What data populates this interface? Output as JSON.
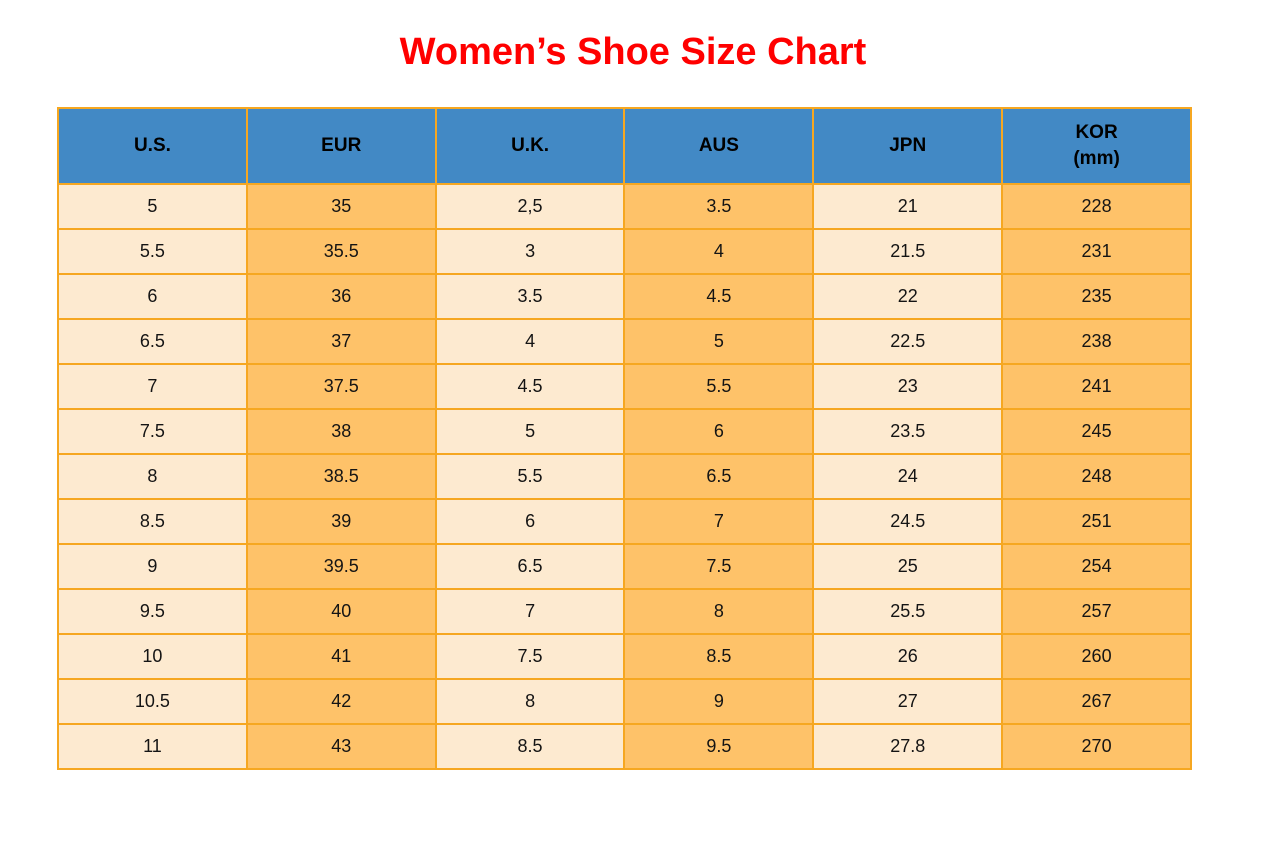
{
  "page": {
    "title": "Women’s Shoe Size Chart",
    "title_color": "#ff0000",
    "background": "#ffffff"
  },
  "table": {
    "columns": [
      {
        "key": "us",
        "label": "U.S.",
        "sublabel": ""
      },
      {
        "key": "eur",
        "label": "EUR",
        "sublabel": ""
      },
      {
        "key": "uk",
        "label": "U.K.",
        "sublabel": ""
      },
      {
        "key": "aus",
        "label": "AUS",
        "sublabel": ""
      },
      {
        "key": "jpn",
        "label": "JPN",
        "sublabel": ""
      },
      {
        "key": "kor",
        "label": "KOR",
        "sublabel": "(mm)"
      }
    ],
    "rows": [
      [
        "5",
        "35",
        "2,5",
        "3.5",
        "21",
        "228"
      ],
      [
        "5.5",
        "35.5",
        "3",
        "4",
        "21.5",
        "231"
      ],
      [
        "6",
        "36",
        "3.5",
        "4.5",
        "22",
        "235"
      ],
      [
        "6.5",
        "37",
        "4",
        "5",
        "22.5",
        "238"
      ],
      [
        "7",
        "37.5",
        "4.5",
        "5.5",
        "23",
        "241"
      ],
      [
        "7.5",
        "38",
        "5",
        "6",
        "23.5",
        "245"
      ],
      [
        "8",
        "38.5",
        "5.5",
        "6.5",
        "24",
        "248"
      ],
      [
        "8.5",
        "39",
        "6",
        "7",
        "24.5",
        "251"
      ],
      [
        "9",
        "39.5",
        "6.5",
        "7.5",
        "25",
        "254"
      ],
      [
        "9.5",
        "40",
        "7",
        "8",
        "25.5",
        "257"
      ],
      [
        "10",
        "41",
        "7.5",
        "8.5",
        "26",
        "260"
      ],
      [
        "10.5",
        "42",
        "8",
        "9",
        "27",
        "267"
      ],
      [
        "11",
        "43",
        "8.5",
        "9.5",
        "27.8",
        "270"
      ]
    ],
    "colors": {
      "header_bg": "#4289c5",
      "header_text": "#000000",
      "border": "#f6a721",
      "col_light": "#fdead0",
      "col_orange": "#fec269",
      "cell_text": "#141414"
    }
  },
  "chart_data": {
    "type": "table",
    "title": "Women’s Shoe Size Chart",
    "columns": [
      "U.S.",
      "EUR",
      "U.K.",
      "AUS",
      "JPN",
      "KOR (mm)"
    ],
    "rows": [
      [
        "5",
        "35",
        "2,5",
        "3.5",
        "21",
        "228"
      ],
      [
        "5.5",
        "35.5",
        "3",
        "4",
        "21.5",
        "231"
      ],
      [
        "6",
        "36",
        "3.5",
        "4.5",
        "22",
        "235"
      ],
      [
        "6.5",
        "37",
        "4",
        "5",
        "22.5",
        "238"
      ],
      [
        "7",
        "37.5",
        "4.5",
        "5.5",
        "23",
        "241"
      ],
      [
        "7.5",
        "38",
        "5",
        "6",
        "23.5",
        "245"
      ],
      [
        "8",
        "38.5",
        "5.5",
        "6.5",
        "24",
        "248"
      ],
      [
        "8.5",
        "39",
        "6",
        "7",
        "24.5",
        "251"
      ],
      [
        "9",
        "39.5",
        "6.5",
        "7.5",
        "25",
        "254"
      ],
      [
        "9.5",
        "40",
        "7",
        "8",
        "25.5",
        "257"
      ],
      [
        "10",
        "41",
        "7.5",
        "8.5",
        "26",
        "260"
      ],
      [
        "10.5",
        "42",
        "8",
        "9",
        "27",
        "267"
      ],
      [
        "11",
        "43",
        "8.5",
        "9.5",
        "27.8",
        "270"
      ]
    ]
  }
}
